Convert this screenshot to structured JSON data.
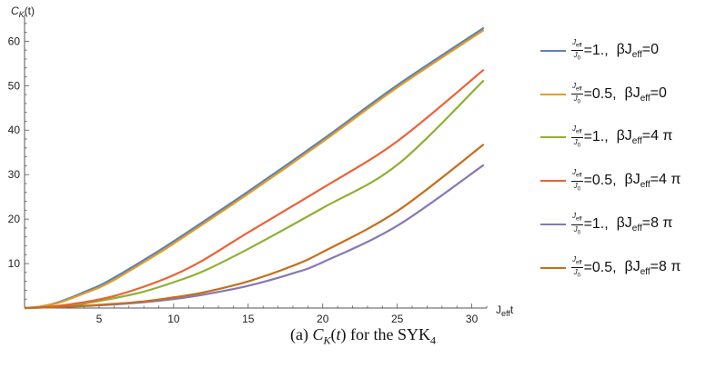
{
  "chart_data": {
    "type": "line",
    "ylabel": "C_K(t)",
    "xlabel": "J_eff t",
    "xlim": [
      0,
      31
    ],
    "ylim": [
      0,
      66
    ],
    "xticks": [
      5,
      10,
      15,
      20,
      25,
      30
    ],
    "yticks": [
      10,
      20,
      30,
      40,
      50,
      60
    ],
    "grid": false,
    "legend_position": "right",
    "series": [
      {
        "name": "Jeff/J0=1., βJeff=0",
        "ratio": "=1.",
        "beta": "0",
        "color": "#5E81B5",
        "x": [
          0,
          1,
          2,
          3,
          4,
          5,
          6,
          8,
          10,
          15,
          20,
          25,
          30.8
        ],
        "y": [
          0,
          0.3,
          1.0,
          2.2,
          3.6,
          5.0,
          6.8,
          10.8,
          15.0,
          26.2,
          37.9,
          50.1,
          63.0
        ]
      },
      {
        "name": "Jeff/J0=0.5, βJeff=0",
        "ratio": "=0.5",
        "beta": "0",
        "color": "#E19C24",
        "x": [
          0,
          1,
          2,
          3,
          4,
          5,
          6,
          8,
          10,
          15,
          20,
          25,
          30.8
        ],
        "y": [
          0,
          0.3,
          0.9,
          2.0,
          3.3,
          4.6,
          6.3,
          10.3,
          14.5,
          25.7,
          37.4,
          49.6,
          62.5
        ]
      },
      {
        "name": "Jeff/J0=1., βJeff=4 π",
        "ratio": "=1.",
        "beta": "4 π",
        "color": "#8FB032",
        "x": [
          0,
          2,
          4,
          6,
          8,
          10,
          12,
          15,
          20,
          25,
          30.8
        ],
        "y": [
          0,
          0.3,
          1.0,
          2.2,
          3.7,
          5.8,
          8.3,
          13.3,
          22.5,
          32.2,
          51.2
        ]
      },
      {
        "name": "Jeff/J0=0.5, βJeff=4 π",
        "ratio": "=0.5",
        "beta": "4 π",
        "color": "#EB6235",
        "x": [
          0,
          2,
          4,
          6,
          8,
          10,
          12,
          15,
          20,
          25,
          30.8
        ],
        "y": [
          0,
          0.4,
          1.3,
          2.7,
          4.8,
          7.4,
          10.8,
          17.0,
          27.0,
          37.5,
          53.6
        ]
      },
      {
        "name": "Jeff/J0=1., βJeff=8 π",
        "ratio": "=1.",
        "beta": "8 π",
        "color": "#8778B3",
        "x": [
          0,
          2,
          5,
          8,
          10,
          12,
          15,
          18,
          20,
          25,
          30.8
        ],
        "y": [
          0,
          0.2,
          0.6,
          1.3,
          2.0,
          3.0,
          5.0,
          7.8,
          10.3,
          18.5,
          32.2
        ]
      },
      {
        "name": "Jeff/J0=0.5, βJeff=8 π",
        "ratio": "=0.5",
        "beta": "8 π",
        "color": "#C56E1A",
        "x": [
          0,
          2,
          5,
          8,
          10,
          12,
          15,
          18,
          20,
          25,
          30.8
        ],
        "y": [
          0,
          0.2,
          0.7,
          1.5,
          2.4,
          3.5,
          6.0,
          9.5,
          12.6,
          21.8,
          36.8
        ]
      }
    ]
  },
  "legend_text": {
    "frac_num": "J_eff",
    "frac_den": "J_0",
    "beta_prefix": "βJ",
    "beta_sub": "eff",
    "sep": ",  "
  },
  "caption": "(a) C_K(t) for the SYK_4"
}
